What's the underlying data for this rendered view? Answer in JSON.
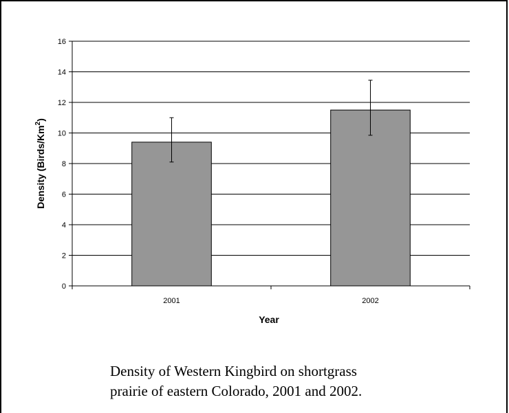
{
  "chart_data": {
    "type": "bar",
    "categories": [
      "2001",
      "2002"
    ],
    "values": [
      9.4,
      11.5
    ],
    "error_low": [
      8.1,
      9.85
    ],
    "error_high": [
      11.0,
      13.45
    ],
    "xlabel": "Year",
    "ylabel_main": "Density (Birds/Km",
    "ylabel_sup": "2",
    "ylabel_close": ")",
    "ylim": [
      0,
      16
    ],
    "yticks": [
      "0",
      "2",
      "4",
      "6",
      "8",
      "10",
      "12",
      "14",
      "16"
    ],
    "grid": true,
    "bar_color": "#969696"
  },
  "caption": {
    "line1": "Density of Western Kingbird on shortgrass",
    "line2": "prairie of eastern Colorado, 2001 and 2002."
  }
}
